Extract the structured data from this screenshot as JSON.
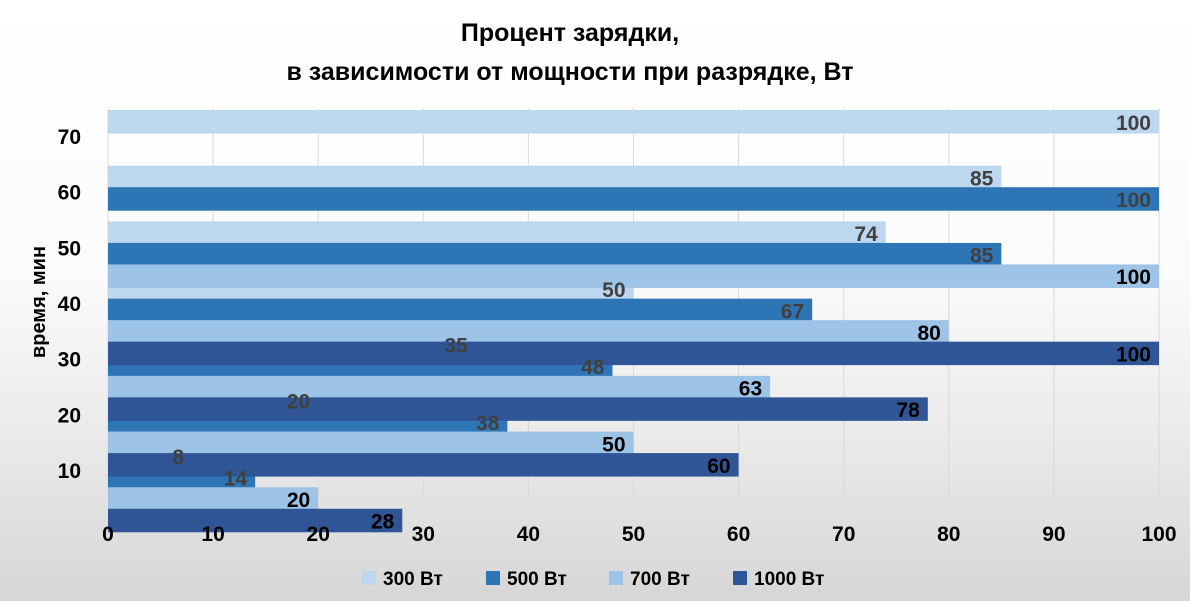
{
  "chart_data": {
    "type": "bar",
    "orientation": "horizontal",
    "title_lines": [
      "Процент зарядки,",
      "в зависимости от мощности при разрядке,  Вт"
    ],
    "xlabel": "",
    "ylabel": "время, мин",
    "xlim": [
      0,
      100
    ],
    "xticks": [
      0,
      10,
      20,
      30,
      40,
      50,
      60,
      70,
      80,
      90,
      100
    ],
    "categories": [
      10,
      20,
      30,
      40,
      50,
      60,
      70
    ],
    "grid": "vertical",
    "legend_position": "bottom",
    "series": [
      {
        "name": "300 Вт",
        "color": "#bdd7ee",
        "label_color": "#404040",
        "values": [
          8,
          20,
          35,
          50,
          74,
          85,
          100
        ]
      },
      {
        "name": "500 Вт",
        "color": "#2e75b6",
        "label_color": "#404040",
        "values": [
          14,
          38,
          48,
          67,
          85,
          100,
          null
        ]
      },
      {
        "name": "700 Вт",
        "color": "#9dc3e6",
        "label_color": "#000000",
        "values": [
          20,
          50,
          63,
          80,
          100,
          null,
          null
        ]
      },
      {
        "name": "1000 Вт",
        "color": "#2f5597",
        "label_color": "#000000",
        "values": [
          28,
          60,
          78,
          100,
          null,
          null,
          null
        ]
      }
    ]
  }
}
